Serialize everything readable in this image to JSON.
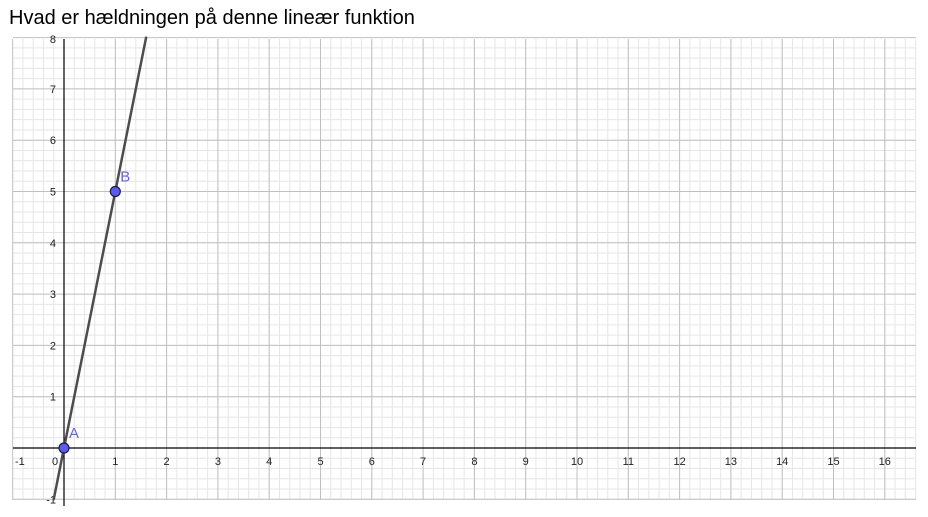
{
  "question": "Hvad er hældningen på denne lineær funktion",
  "chart_data": {
    "type": "line",
    "title": "",
    "xlabel": "",
    "ylabel": "",
    "xlim": [
      -1,
      16.6
    ],
    "ylim": [
      -1,
      8
    ],
    "grid": true,
    "x_ticks": [
      "-1",
      "0",
      "1",
      "2",
      "3",
      "4",
      "5",
      "6",
      "7",
      "8",
      "9",
      "10",
      "11",
      "12",
      "13",
      "14",
      "15",
      "16"
    ],
    "y_ticks": [
      "-1",
      "1",
      "2",
      "3",
      "4",
      "5",
      "6",
      "7",
      "8"
    ],
    "series": [
      {
        "points": [
          [
            -0.2,
            -1
          ],
          [
            1.6,
            8
          ]
        ],
        "slope": 5,
        "intercept": 0
      }
    ],
    "points": [
      {
        "label": "A",
        "x": 0,
        "y": 0
      },
      {
        "label": "B",
        "x": 1,
        "y": 5
      }
    ],
    "colors": {
      "line": "#4d4d4d",
      "point_fill": "#5c5ce6",
      "point_label": "#6666cc",
      "major_grid": "#c0c0c0",
      "minor_grid": "#e6e6e6",
      "axis": "#000000"
    }
  }
}
